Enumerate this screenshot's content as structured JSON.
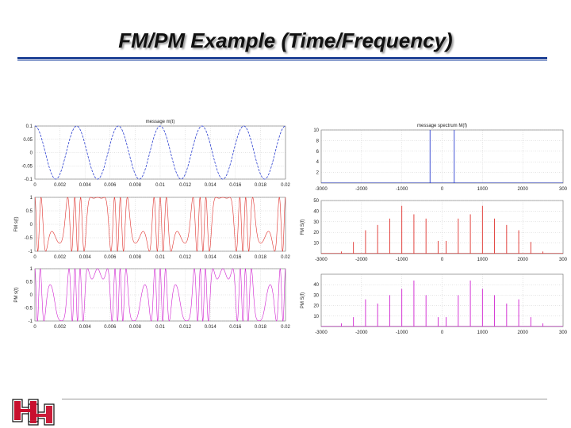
{
  "slide": {
    "title": "FM/PM Example (Time/Frequency)"
  },
  "colors": {
    "accent": "#1c3f94",
    "logo": "#c8102e",
    "message": "#2b3fd0",
    "fm": "#e0302c",
    "pm": "#d020d0"
  },
  "chart_data": [
    {
      "type": "line",
      "title": "message m(t)",
      "ylabel": "",
      "xlim": [
        0,
        0.02
      ],
      "ylim": [
        -0.1,
        0.1
      ],
      "x_ticks": [
        "0",
        "0.002",
        "0.004",
        "0.006",
        "0.008",
        "0.01",
        "0.012",
        "0.014",
        "0.016",
        "0.018",
        "0.02"
      ],
      "y_ticks": [
        "0.1",
        "0.05",
        "0",
        "-0.05",
        "-0.1"
      ],
      "grid": true,
      "series": [
        {
          "color": "#2b3fd0",
          "style": "dashed",
          "amplitude": 0.1,
          "frequency_hz": 300
        }
      ]
    },
    {
      "type": "line",
      "title": "",
      "ylabel": "FM s(t)",
      "xlim": [
        0,
        0.02
      ],
      "ylim": [
        -1,
        1
      ],
      "x_ticks": [
        "0",
        "0.002",
        "0.004",
        "0.006",
        "0.008",
        "0.01",
        "0.012",
        "0.014",
        "0.016",
        "0.018",
        "0.02"
      ],
      "y_ticks": [
        "1",
        "0.5",
        "0",
        "-0.5",
        "-1"
      ],
      "grid": true,
      "series": [
        {
          "color": "#e0302c",
          "amplitude": 1,
          "carrier_hz": 1000,
          "message_hz": 300,
          "modulation_index": 4
        }
      ]
    },
    {
      "type": "line",
      "title": "",
      "ylabel": "PM s(t)",
      "xlim": [
        0,
        0.02
      ],
      "ylim": [
        -1,
        1
      ],
      "x_ticks": [
        "0",
        "0.002",
        "0.004",
        "0.006",
        "0.008",
        "0.01",
        "0.012",
        "0.014",
        "0.016",
        "0.018",
        "0.02"
      ],
      "y_ticks": [
        "1",
        "0.5",
        "0",
        "-0.5",
        "-1"
      ],
      "grid": true,
      "series": [
        {
          "color": "#d020d0",
          "amplitude": 1,
          "carrier_hz": 1000,
          "message_hz": 300,
          "modulation_index": 5
        }
      ]
    },
    {
      "type": "line",
      "title": "message spectrum M(f)",
      "ylabel": "",
      "xlim": [
        -3000,
        3000
      ],
      "ylim": [
        0,
        10
      ],
      "x_ticks": [
        "-3000",
        "-2000",
        "-1000",
        "0",
        "1000",
        "2000",
        "300"
      ],
      "y_ticks": [
        "10",
        "8",
        "6",
        "4",
        "2"
      ],
      "grid": true,
      "series": [
        {
          "color": "#2b3fd0",
          "x": [
            -300,
            300
          ],
          "y": [
            10,
            10
          ]
        }
      ]
    },
    {
      "type": "line",
      "title": "",
      "ylabel": "FM S(f)",
      "xlim": [
        -3000,
        3000
      ],
      "ylim": [
        0,
        50
      ],
      "x_ticks": [
        "-3000",
        "-2000",
        "-1000",
        "0",
        "1000",
        "2000",
        "300"
      ],
      "y_ticks": [
        "50",
        "40",
        "30",
        "20",
        "10"
      ],
      "grid": true,
      "series": [
        {
          "color": "#e0302c",
          "x": [
            -2500,
            -2200,
            -1900,
            -1600,
            -1300,
            -1000,
            -700,
            -400,
            -100,
            100,
            400,
            700,
            1000,
            1300,
            1600,
            1900,
            2200,
            2500
          ],
          "y": [
            2,
            11,
            22,
            27,
            33,
            45,
            37,
            33,
            12,
            12,
            33,
            37,
            45,
            33,
            27,
            22,
            11,
            2
          ]
        }
      ]
    },
    {
      "type": "line",
      "title": "",
      "ylabel": "PM S(f)",
      "xlim": [
        -3000,
        3000
      ],
      "ylim": [
        0,
        50
      ],
      "x_ticks": [
        "-3000",
        "-2000",
        "-1000",
        "0",
        "1000",
        "2000",
        "300"
      ],
      "y_ticks": [
        "40",
        "30",
        "20",
        "10"
      ],
      "grid": true,
      "series": [
        {
          "color": "#d020d0",
          "x": [
            -2500,
            -2200,
            -1900,
            -1600,
            -1300,
            -1000,
            -700,
            -400,
            -100,
            100,
            400,
            700,
            1000,
            1300,
            1600,
            1900,
            2200,
            2500
          ],
          "y": [
            3,
            9,
            26,
            22,
            30,
            36,
            44,
            30,
            9,
            9,
            30,
            44,
            36,
            30,
            22,
            26,
            9,
            3
          ]
        }
      ]
    }
  ]
}
